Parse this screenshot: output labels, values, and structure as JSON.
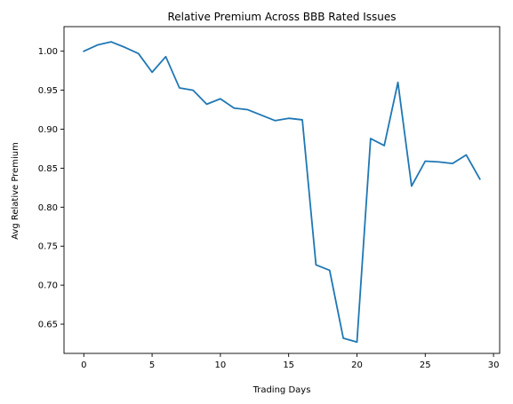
{
  "chart_data": {
    "type": "line",
    "title": "Relative Premium Across BBB Rated Issues",
    "xlabel": "Trading Days",
    "ylabel": "Avg Relative Premium",
    "xlim": [
      -1.45,
      30.45
    ],
    "ylim": [
      0.6125,
      1.0315
    ],
    "x_ticks": [
      0,
      5,
      10,
      15,
      20,
      25,
      30
    ],
    "x_tick_labels": [
      "0",
      "5",
      "10",
      "15",
      "20",
      "25",
      "30"
    ],
    "y_ticks": [
      0.65,
      0.7,
      0.75,
      0.8,
      0.85,
      0.9,
      0.95,
      1.0
    ],
    "y_tick_labels": [
      "0.65",
      "0.70",
      "0.75",
      "0.80",
      "0.85",
      "0.90",
      "0.95",
      "1.00"
    ],
    "grid": false,
    "series": [
      {
        "color": "#1f77b4",
        "x": [
          0,
          1,
          2,
          3,
          4,
          5,
          6,
          7,
          8,
          9,
          10,
          11,
          12,
          13,
          14,
          15,
          16,
          17,
          18,
          19,
          20,
          21,
          22,
          23,
          24,
          25,
          26,
          27,
          28,
          29
        ],
        "values": [
          1.0,
          1.008,
          1.012,
          1.005,
          0.997,
          0.973,
          0.993,
          0.953,
          0.95,
          0.932,
          0.939,
          0.927,
          0.925,
          0.918,
          0.911,
          0.914,
          0.912,
          0.726,
          0.719,
          0.632,
          0.627,
          0.888,
          0.879,
          0.96,
          0.827,
          0.859,
          0.858,
          0.856,
          0.867,
          0.836
        ]
      }
    ]
  }
}
